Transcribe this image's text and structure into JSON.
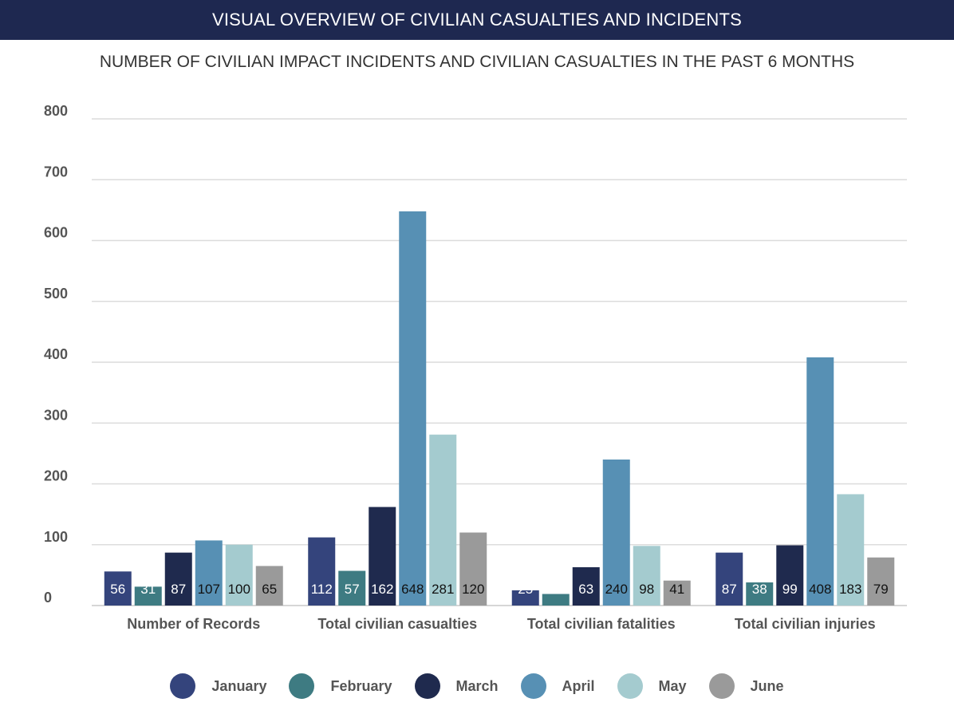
{
  "header": {
    "title": "VISUAL OVERVIEW OF CIVILIAN CASUALTIES AND INCIDENTS"
  },
  "chart_data": {
    "type": "bar",
    "title": "NUMBER OF CIVILIAN IMPACT INCIDENTS AND CIVILIAN CASUALTIES IN THE PAST 6 MONTHS",
    "xlabel": "",
    "ylabel": "",
    "ylim": [
      0,
      800
    ],
    "yticks": [
      0,
      100,
      200,
      300,
      400,
      500,
      600,
      700,
      800
    ],
    "grid": true,
    "legend_position": "bottom",
    "categories": [
      "Number of Records",
      "Total civilian casualties",
      "Total civilian fatalities",
      "Total civilian injuries"
    ],
    "series": [
      {
        "name": "January",
        "color": "#34447c",
        "label_color": "#ffffff",
        "values": [
          56,
          112,
          25,
          87
        ]
      },
      {
        "name": "February",
        "color": "#3e7b82",
        "label_color": "#ffffff",
        "values": [
          31,
          57,
          19,
          38
        ]
      },
      {
        "name": "March",
        "color": "#1f2a4e",
        "label_color": "#ffffff",
        "values": [
          87,
          162,
          63,
          99
        ]
      },
      {
        "name": "April",
        "color": "#5790b4",
        "label_color": "#111111",
        "values": [
          107,
          648,
          240,
          408
        ]
      },
      {
        "name": "May",
        "color": "#a4cbcf",
        "label_color": "#111111",
        "values": [
          100,
          281,
          98,
          183
        ]
      },
      {
        "name": "June",
        "color": "#9a9a9a",
        "label_color": "#111111",
        "values": [
          65,
          120,
          41,
          79
        ]
      }
    ]
  }
}
